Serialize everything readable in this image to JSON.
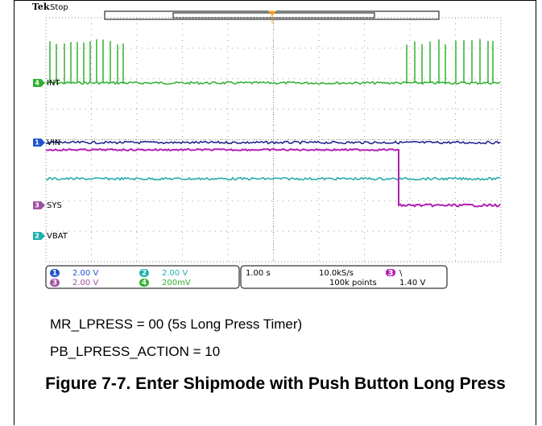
{
  "scope": {
    "brand": "Tek",
    "status": "Stop",
    "traces": [
      {
        "marker": "4",
        "label": "INT"
      },
      {
        "marker": "1",
        "label": "VIN"
      },
      {
        "marker": "3",
        "label": "SYS"
      },
      {
        "marker": "2",
        "label": "VBAT"
      }
    ],
    "readout": {
      "channels": [
        {
          "num": "1",
          "scale": "2.00 V"
        },
        {
          "num": "3",
          "scale": "2.00 V"
        },
        {
          "num": "2",
          "scale": "2.00 V"
        },
        {
          "num": "4",
          "scale": "200mV"
        }
      ],
      "timebase": "1.00 s",
      "sample_rate": "10.0kS/s",
      "record_length": "100k points",
      "trigger": {
        "source": "3",
        "slope": "\\",
        "level": "1.40 V"
      }
    }
  },
  "caption": [
    "MR_LPRESS = 00 (5s Long Press Timer)",
    "PB_LPRESS_ACTION = 10"
  ],
  "figure_title": "Figure 7-7. Enter Shipmode with Push Button Long Press"
}
